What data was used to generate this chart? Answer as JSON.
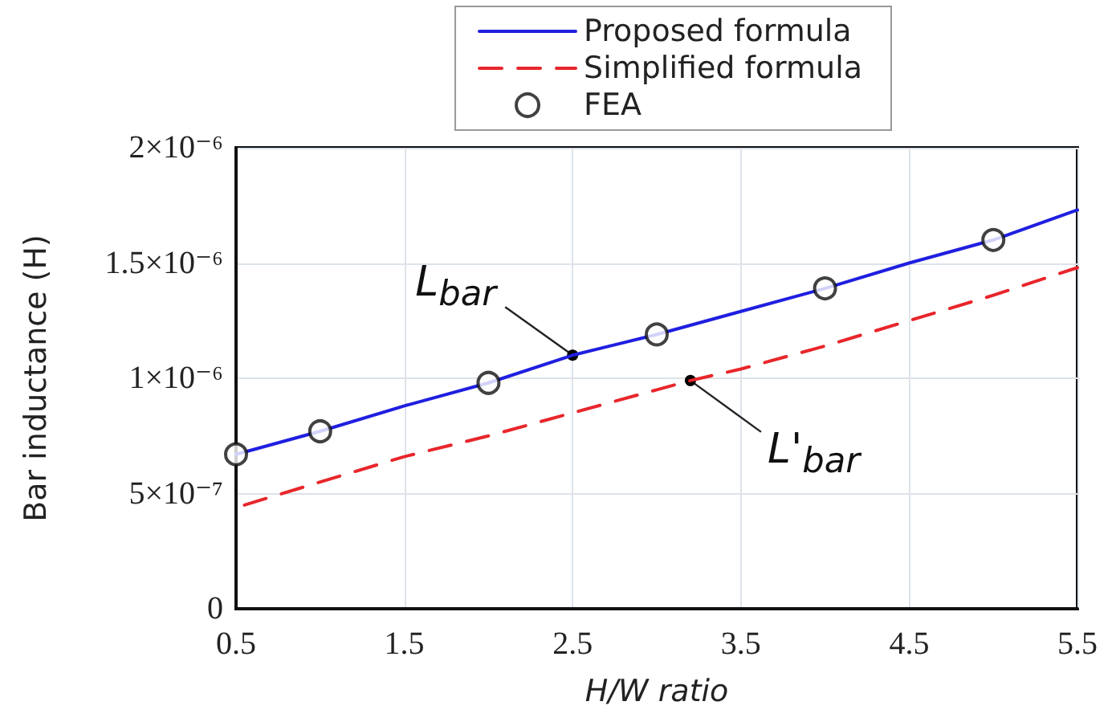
{
  "chart_data": {
    "type": "line",
    "xlabel": "H/W ratio",
    "ylabel": "Bar inductance (H)",
    "xlim": [
      0.5,
      5.5
    ],
    "xticks": [
      0.5,
      1.5,
      2.5,
      3.5,
      4.5,
      5.5
    ],
    "ylim": [
      0,
      2e-06
    ],
    "yticks": [
      {
        "value": 0,
        "label": "0"
      },
      {
        "value": 5e-07,
        "label": "5×10⁻⁷"
      },
      {
        "value": 1e-06,
        "label": "1×10⁻⁶"
      },
      {
        "value": 1.5e-06,
        "label": "1.5×10⁻⁶"
      },
      {
        "value": 2e-06,
        "label": "2×10⁻⁶"
      }
    ],
    "grid": true,
    "legend": "top right",
    "series": [
      {
        "name": "Proposed formula",
        "color": "#1f1fe0",
        "line_style": "solid",
        "marker": "none",
        "x": [
          0.5,
          1,
          1.5,
          2,
          2.5,
          3,
          3.5,
          4,
          4.5,
          5,
          5.5
        ],
        "values": [
          6.7e-07,
          7.7e-07,
          8.8e-07,
          9.8e-07,
          1.1e-06,
          1.19e-06,
          1.29e-06,
          1.39e-06,
          1.5e-06,
          1.6e-06,
          1.73e-06
        ]
      },
      {
        "name": "Simplified formula",
        "color": "#e8262b",
        "line_style": "dashed",
        "marker": "none",
        "x": [
          0.55,
          1,
          1.5,
          2,
          2.5,
          3,
          3.2,
          3.5,
          4,
          4.5,
          5,
          5.5
        ],
        "values": [
          4.5e-07,
          5.5e-07,
          6.6e-07,
          7.5e-07,
          8.5e-07,
          9.5e-07,
          9.9e-07,
          1.04e-06,
          1.14e-06,
          1.25e-06,
          1.36e-06,
          1.48e-06
        ]
      },
      {
        "name": "FEA",
        "type": "scatter",
        "color": "#111111",
        "marker": "circle",
        "x": [
          0.5,
          1,
          2,
          3,
          4,
          5
        ],
        "values": [
          6.7e-07,
          7.7e-07,
          9.8e-07,
          1.19e-06,
          1.39e-06,
          1.6e-06
        ]
      }
    ],
    "annotations": [
      {
        "text": "L$_{bar}$",
        "x": 2.5,
        "y": 1.1e-06
      },
      {
        "text": "L'$_{bar}$",
        "x": 3.2,
        "y": 9.9e-07
      }
    ]
  }
}
